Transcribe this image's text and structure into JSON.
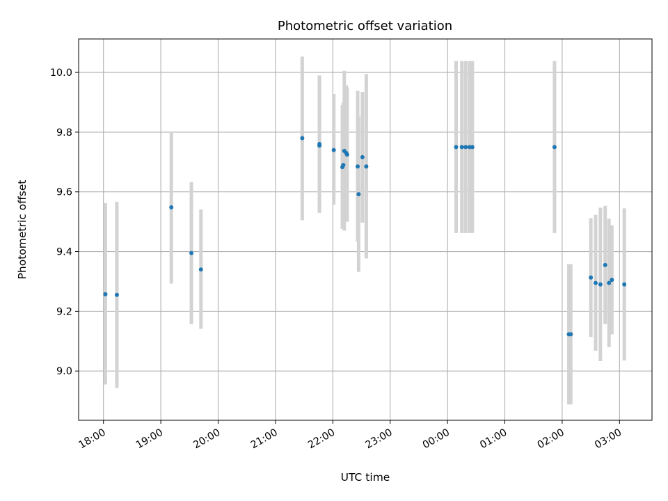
{
  "chart_data": {
    "type": "scatter",
    "title": "Photometric offset variation",
    "xlabel": "UTC time",
    "ylabel": "Photometric offset",
    "grid": true,
    "legend": "none",
    "xlim": [
      "17:34",
      "03:34"
    ],
    "ylim": [
      8.835,
      10.112
    ],
    "x_ticks": [
      "18:00",
      "19:00",
      "20:00",
      "21:00",
      "22:00",
      "23:00",
      "00:00",
      "01:00",
      "02:00",
      "03:00"
    ],
    "y_ticks": [
      "9.0",
      "9.2",
      "9.4",
      "9.6",
      "9.8",
      "10.0"
    ],
    "colors": {
      "point": "#1f77b4",
      "error_bar": "#d3d3d3",
      "grid": "#b0b0b0"
    },
    "series": [
      {
        "points": [
          {
            "x": "18:02",
            "y": 9.257,
            "low": 8.955,
            "high": 9.562
          },
          {
            "x": "18:14",
            "y": 9.255,
            "low": 8.943,
            "high": 9.567
          },
          {
            "x": "19:11",
            "y": 9.548,
            "low": 9.293,
            "high": 9.8
          },
          {
            "x": "19:32",
            "y": 9.395,
            "low": 9.157,
            "high": 9.633
          },
          {
            "x": "19:42",
            "y": 9.34,
            "low": 9.141,
            "high": 9.541
          },
          {
            "x": "21:28",
            "y": 9.78,
            "low": 9.505,
            "high": 10.053
          },
          {
            "x": "21:46",
            "y": 9.76,
            "low": 9.53,
            "high": 9.99
          },
          {
            "x": "21:46",
            "y": 9.755,
            "low": 9.53,
            "high": 9.985
          },
          {
            "x": "22:01",
            "y": 9.74,
            "low": 9.557,
            "high": 9.928
          },
          {
            "x": "22:10",
            "y": 9.683,
            "low": 9.476,
            "high": 9.89
          },
          {
            "x": "22:11",
            "y": 9.69,
            "low": 9.478,
            "high": 9.9
          },
          {
            "x": "22:12",
            "y": 9.737,
            "low": 9.47,
            "high": 10.005
          },
          {
            "x": "22:14",
            "y": 9.73,
            "low": 9.502,
            "high": 9.957
          },
          {
            "x": "22:15",
            "y": 9.725,
            "low": 9.5,
            "high": 9.95
          },
          {
            "x": "22:26",
            "y": 9.685,
            "low": 9.433,
            "high": 9.938
          },
          {
            "x": "22:27",
            "y": 9.592,
            "low": 9.332,
            "high": 9.852
          },
          {
            "x": "22:31",
            "y": 9.716,
            "low": 9.497,
            "high": 9.935
          },
          {
            "x": "22:35",
            "y": 9.685,
            "low": 9.377,
            "high": 9.995
          },
          {
            "x": "00:09",
            "y": 9.75,
            "low": 9.462,
            "high": 10.038
          },
          {
            "x": "00:15",
            "y": 9.75,
            "low": 9.462,
            "high": 10.038
          },
          {
            "x": "00:19",
            "y": 9.75,
            "low": 9.462,
            "high": 10.038
          },
          {
            "x": "00:23",
            "y": 9.75,
            "low": 9.462,
            "high": 10.038
          },
          {
            "x": "00:26",
            "y": 9.75,
            "low": 9.462,
            "high": 10.038
          },
          {
            "x": "01:52",
            "y": 9.75,
            "low": 9.462,
            "high": 10.038
          },
          {
            "x": "02:07",
            "y": 9.123,
            "low": 8.888,
            "high": 9.358
          },
          {
            "x": "02:09",
            "y": 9.123,
            "low": 8.888,
            "high": 9.358
          },
          {
            "x": "02:30",
            "y": 9.313,
            "low": 9.114,
            "high": 9.512
          },
          {
            "x": "02:35",
            "y": 9.295,
            "low": 9.068,
            "high": 9.523
          },
          {
            "x": "02:40",
            "y": 9.29,
            "low": 9.033,
            "high": 9.547
          },
          {
            "x": "02:45",
            "y": 9.355,
            "low": 9.157,
            "high": 9.553
          },
          {
            "x": "02:49",
            "y": 9.295,
            "low": 9.08,
            "high": 9.51
          },
          {
            "x": "02:52",
            "y": 9.305,
            "low": 9.123,
            "high": 9.488
          },
          {
            "x": "03:05",
            "y": 9.29,
            "low": 9.035,
            "high": 9.545
          }
        ]
      }
    ]
  }
}
